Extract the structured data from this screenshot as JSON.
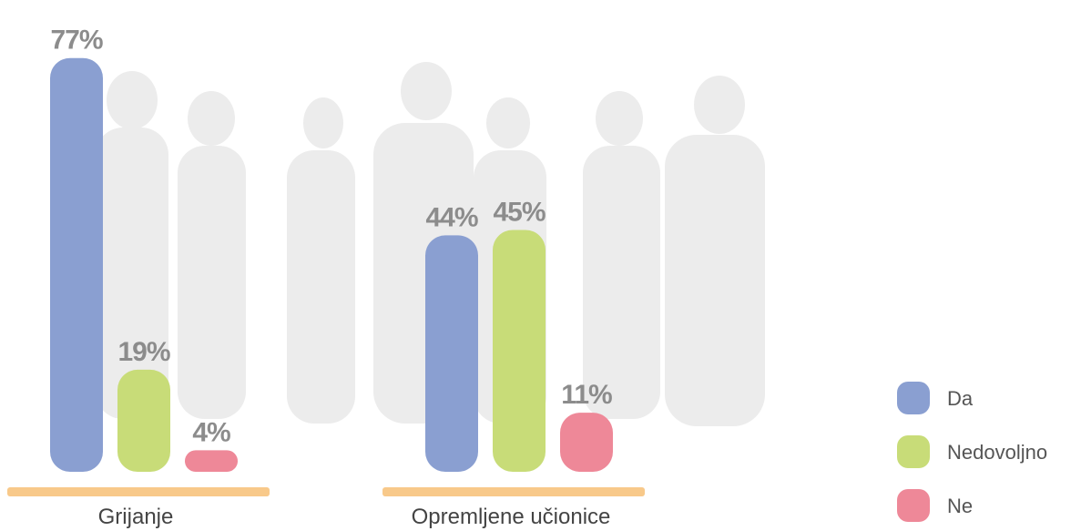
{
  "chart_data": {
    "type": "bar",
    "categories": [
      "Grijanje",
      "Opremljene učionice"
    ],
    "series": [
      {
        "name": "Da",
        "color": "#8a9fd1",
        "values": [
          77,
          44
        ],
        "value_labels": [
          "77%",
          "44%"
        ]
      },
      {
        "name": "Nedovoljno",
        "color": "#c8dc78",
        "values": [
          19,
          45
        ],
        "value_labels": [
          "19%",
          "45%"
        ]
      },
      {
        "name": "Ne",
        "color": "#ee8898",
        "values": [
          4,
          11
        ],
        "value_labels": [
          "4%",
          "11%"
        ]
      }
    ],
    "ylim": [
      0,
      80
    ]
  }
}
